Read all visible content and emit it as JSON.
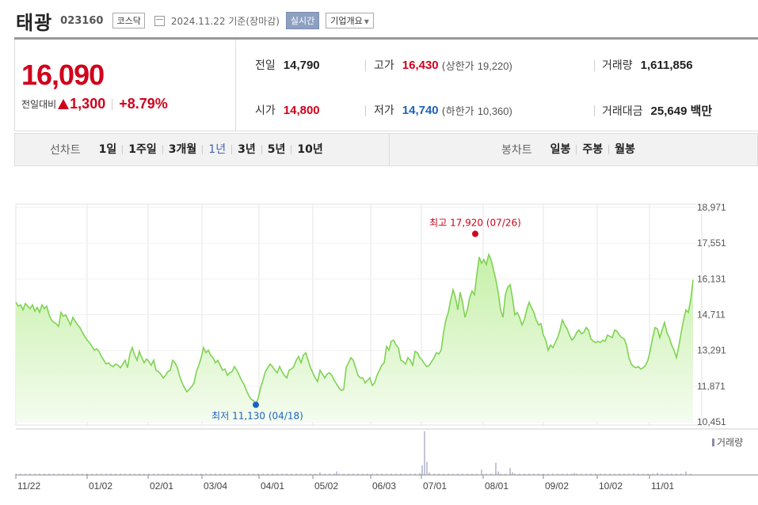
{
  "header": {
    "name": "태광",
    "code": "023160",
    "market": "코스닥",
    "date": "2024.11.22 기준(장마감)",
    "realtime": "실시간",
    "overview": "기업개요"
  },
  "price": {
    "current": "16,090",
    "change_label": "전일대비",
    "change": "1,300",
    "change_pct": "+8.79%"
  },
  "stats": {
    "prev_label": "전일",
    "prev": "14,790",
    "high_label": "고가",
    "high": "16,430",
    "upper_label": "(상한가",
    "upper": "19,220)",
    "volume_label": "거래량",
    "volume": "1,611,856",
    "open_label": "시가",
    "open": "14,800",
    "low_label": "저가",
    "low": "14,740",
    "lower_label": "(하한가",
    "lower": "10,360)",
    "value_label": "거래대금",
    "value": "25,649 백만"
  },
  "tabs": {
    "line_title": "선차트",
    "line_items": [
      "1일",
      "1주일",
      "3개월",
      "1년",
      "3년",
      "5년",
      "10년"
    ],
    "line_selected": 3,
    "candle_title": "봉차트",
    "candle_items": [
      "일봉",
      "주봉",
      "월봉"
    ]
  },
  "chart_data": {
    "type": "area",
    "y_ticks": [
      "18,971",
      "17,551",
      "16,131",
      "14,711",
      "13,291",
      "11,871",
      "10,451"
    ],
    "y_tick_values": [
      18971,
      17551,
      16131,
      14711,
      13291,
      11871,
      10451
    ],
    "ylim": [
      10451,
      18971
    ],
    "x_ticks": [
      "11/22",
      "01/02",
      "02/01",
      "03/04",
      "04/01",
      "05/02",
      "06/03",
      "07/01",
      "08/01",
      "09/02",
      "10/02",
      "11/01"
    ],
    "max_label": "최고 17,920 (07/26)",
    "min_label": "최저 11,130 (04/18)",
    "volume_legend": "거래량",
    "price_series": [
      15200,
      15050,
      15100,
      14900,
      15150,
      15050,
      14950,
      15100,
      14850,
      15000,
      14800,
      15100,
      14950,
      15050,
      14700,
      14500,
      14400,
      14350,
      14250,
      14800,
      14650,
      14700,
      14500,
      14300,
      14600,
      14450,
      14300,
      14200,
      14000,
      13850,
      13700,
      13600,
      13450,
      13300,
      13350,
      13250,
      13050,
      12900,
      12750,
      12800,
      12700,
      12650,
      12750,
      12700,
      12600,
      12750,
      12900,
      12600,
      13150,
      13400,
      13100,
      12900,
      13250,
      13000,
      12800,
      12950,
      12850,
      12700,
      12900,
      12500,
      12450,
      12350,
      12200,
      12300,
      12450,
      12500,
      12900,
      12800,
      12600,
      12250,
      12000,
      11800,
      11650,
      11750,
      11850,
      12000,
      12450,
      12700,
      13000,
      13400,
      13200,
      13300,
      13100,
      13000,
      12800,
      12900,
      12700,
      12500,
      12550,
      12300,
      12400,
      12450,
      12650,
      12500,
      12300,
      12100,
      11950,
      11700,
      11500,
      11350,
      11300,
      11130,
      11400,
      11800,
      12100,
      12450,
      12600,
      12750,
      12650,
      12500,
      12400,
      12650,
      12450,
      12300,
      12200,
      12500,
      12550,
      12650,
      12900,
      13050,
      12800,
      13100,
      13200,
      12900,
      12600,
      12400,
      12200,
      12050,
      12500,
      12350,
      12200,
      12350,
      12400,
      12300,
      12100,
      11950,
      11800,
      11700,
      11750,
      12600,
      12800,
      13000,
      12900,
      12600,
      12300,
      12200,
      12200,
      12000,
      12100,
      12200,
      11900,
      12000,
      12300,
      12500,
      12700,
      12800,
      13450,
      13300,
      13650,
      13700,
      13500,
      13400,
      12900,
      12850,
      12750,
      13000,
      12900,
      12700,
      13250,
      13200,
      13000,
      12900,
      12750,
      12650,
      12700,
      12850,
      13000,
      13200,
      13150,
      13300,
      14000,
      14500,
      14800,
      15300,
      15700,
      15400,
      14900,
      15600,
      15200,
      14600,
      14900,
      15400,
      15650,
      15500,
      16300,
      17000,
      16750,
      16900,
      16700,
      17100,
      16900,
      16500,
      16100,
      15600,
      14900,
      14600,
      15500,
      15800,
      15900,
      15400,
      14700,
      14800,
      14600,
      14300,
      14500,
      14900,
      15200,
      15000,
      14800,
      14500,
      14300,
      14350,
      13900,
      13700,
      13300,
      13500,
      13400,
      13600,
      13800,
      14100,
      14500,
      14300,
      14150,
      13900,
      13700,
      13800,
      14000,
      14100,
      13950,
      14000,
      14200,
      14100,
      13750,
      13650,
      13600,
      13650,
      13600,
      13700,
      13650,
      13900,
      13850,
      13800,
      14100,
      14050,
      13900,
      13800,
      13750,
      13500,
      13000,
      12750,
      12650,
      12600,
      12650,
      12550,
      12600,
      12700,
      12900,
      13300,
      13800,
      14200,
      14150,
      13800,
      14100,
      14400,
      14000,
      13800,
      13500,
      13300,
      13000,
      13450,
      14000,
      14500,
      14900,
      14800,
      15300,
      16090
    ],
    "volume_spikes": [
      [
        128,
        6
      ],
      [
        135,
        8
      ],
      [
        170,
        4
      ],
      [
        171,
        22
      ],
      [
        172,
        100
      ],
      [
        173,
        30
      ],
      [
        174,
        6
      ],
      [
        196,
        12
      ],
      [
        202,
        28
      ],
      [
        203,
        8
      ],
      [
        208,
        16
      ],
      [
        209,
        6
      ],
      [
        235,
        4
      ],
      [
        260,
        4
      ],
      [
        270,
        5
      ],
      [
        282,
        8
      ]
    ]
  }
}
